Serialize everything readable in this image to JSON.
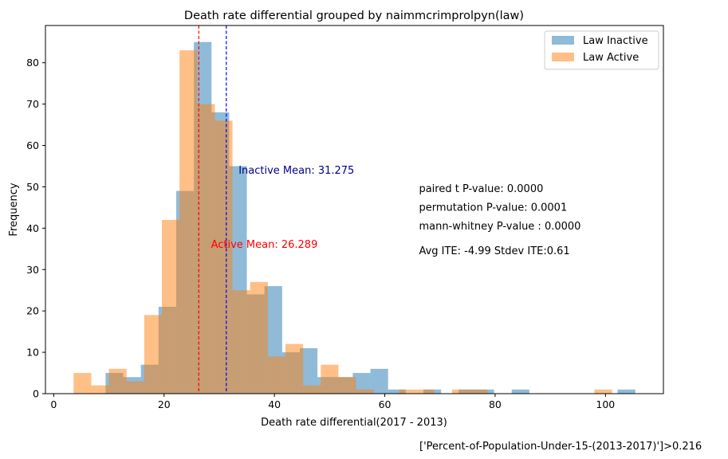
{
  "chart_data": {
    "type": "histogram",
    "title": "Death rate differential grouped by naimmcrimprolpyn(law)",
    "xlabel": "Death rate differential(2017 - 2013)",
    "ylabel": "Frequency",
    "xlim": [
      -1.5,
      110.5
    ],
    "ylim": [
      0,
      89
    ],
    "xticks": [
      0,
      20,
      40,
      60,
      80,
      100
    ],
    "yticks": [
      0,
      10,
      20,
      30,
      40,
      50,
      60,
      70,
      80
    ],
    "grid": false,
    "legend_position": "top-right",
    "series": [
      {
        "name": "Law Inactive",
        "color": "#1f77b4",
        "alpha": 0.5,
        "bins": [
          {
            "x0": 9.4,
            "x1": 12.6,
            "count": 5
          },
          {
            "x0": 12.6,
            "x1": 15.8,
            "count": 4
          },
          {
            "x0": 15.8,
            "x1": 19.0,
            "count": 7
          },
          {
            "x0": 19.0,
            "x1": 22.2,
            "count": 21
          },
          {
            "x0": 22.2,
            "x1": 25.4,
            "count": 49
          },
          {
            "x0": 25.4,
            "x1": 28.6,
            "count": 85
          },
          {
            "x0": 28.6,
            "x1": 31.8,
            "count": 68
          },
          {
            "x0": 31.8,
            "x1": 35.0,
            "count": 55
          },
          {
            "x0": 35.0,
            "x1": 38.2,
            "count": 24
          },
          {
            "x0": 38.2,
            "x1": 41.4,
            "count": 26
          },
          {
            "x0": 41.4,
            "x1": 44.6,
            "count": 10
          },
          {
            "x0": 44.6,
            "x1": 47.8,
            "count": 11
          },
          {
            "x0": 47.8,
            "x1": 51.0,
            "count": 4
          },
          {
            "x0": 51.0,
            "x1": 54.2,
            "count": 4
          },
          {
            "x0": 54.2,
            "x1": 57.4,
            "count": 5
          },
          {
            "x0": 57.4,
            "x1": 60.6,
            "count": 6
          },
          {
            "x0": 60.6,
            "x1": 63.8,
            "count": 1
          },
          {
            "x0": 67.0,
            "x1": 70.2,
            "count": 1
          },
          {
            "x0": 73.4,
            "x1": 76.6,
            "count": 1
          },
          {
            "x0": 76.6,
            "x1": 79.8,
            "count": 1
          },
          {
            "x0": 83.0,
            "x1": 86.2,
            "count": 1
          },
          {
            "x0": 102.2,
            "x1": 105.4,
            "count": 1
          }
        ]
      },
      {
        "name": "Law Active",
        "color": "#ff7f0e",
        "alpha": 0.5,
        "bins": [
          {
            "x0": 3.6,
            "x1": 6.8,
            "count": 5
          },
          {
            "x0": 6.8,
            "x1": 10.0,
            "count": 2
          },
          {
            "x0": 10.0,
            "x1": 13.2,
            "count": 6
          },
          {
            "x0": 13.2,
            "x1": 16.4,
            "count": 3
          },
          {
            "x0": 16.4,
            "x1": 19.6,
            "count": 19
          },
          {
            "x0": 19.6,
            "x1": 22.8,
            "count": 42
          },
          {
            "x0": 22.8,
            "x1": 26.0,
            "count": 83
          },
          {
            "x0": 26.0,
            "x1": 29.2,
            "count": 70
          },
          {
            "x0": 29.2,
            "x1": 32.4,
            "count": 66
          },
          {
            "x0": 32.4,
            "x1": 35.6,
            "count": 25
          },
          {
            "x0": 35.6,
            "x1": 38.8,
            "count": 27
          },
          {
            "x0": 38.8,
            "x1": 42.0,
            "count": 9
          },
          {
            "x0": 42.0,
            "x1": 45.2,
            "count": 12
          },
          {
            "x0": 45.2,
            "x1": 48.4,
            "count": 2
          },
          {
            "x0": 48.4,
            "x1": 51.6,
            "count": 7
          },
          {
            "x0": 51.6,
            "x1": 54.8,
            "count": 4
          },
          {
            "x0": 54.8,
            "x1": 58.0,
            "count": 1
          },
          {
            "x0": 62.6,
            "x1": 65.8,
            "count": 1
          },
          {
            "x0": 65.8,
            "x1": 69.0,
            "count": 1
          },
          {
            "x0": 72.2,
            "x1": 75.4,
            "count": 1
          },
          {
            "x0": 75.4,
            "x1": 78.6,
            "count": 1
          },
          {
            "x0": 98.0,
            "x1": 101.2,
            "count": 1
          }
        ]
      }
    ],
    "mean_lines": [
      {
        "name": "inactive-mean",
        "x": 31.275,
        "color": "#0000ff",
        "style": "dashed",
        "label": "Inactive Mean: 31.275",
        "label_x": 33.5,
        "label_y": 53.2,
        "label_color": "#00008b"
      },
      {
        "name": "active-mean",
        "x": 26.289,
        "color": "#ff0000",
        "style": "dashed",
        "label": "Active Mean: 26.289",
        "label_x": 28.5,
        "label_y": 35.3,
        "label_color": "#ff0000"
      }
    ],
    "annotations": [
      {
        "text": "paired t P-value: 0.0000",
        "x": 66.2,
        "y": 48.7
      },
      {
        "text": "permutation P-value: 0.0001",
        "x": 66.2,
        "y": 44.2
      },
      {
        "text": "mann-whitney P-value : 0.0000",
        "x": 66.2,
        "y": 39.7
      },
      {
        "text": "Avg ITE: -4.99 Stdev ITE:0.61",
        "x": 66.2,
        "y": 33.7
      }
    ],
    "footer_note": "['Percent-of-Population-Under-15-(2013-2017)']>0.216"
  }
}
